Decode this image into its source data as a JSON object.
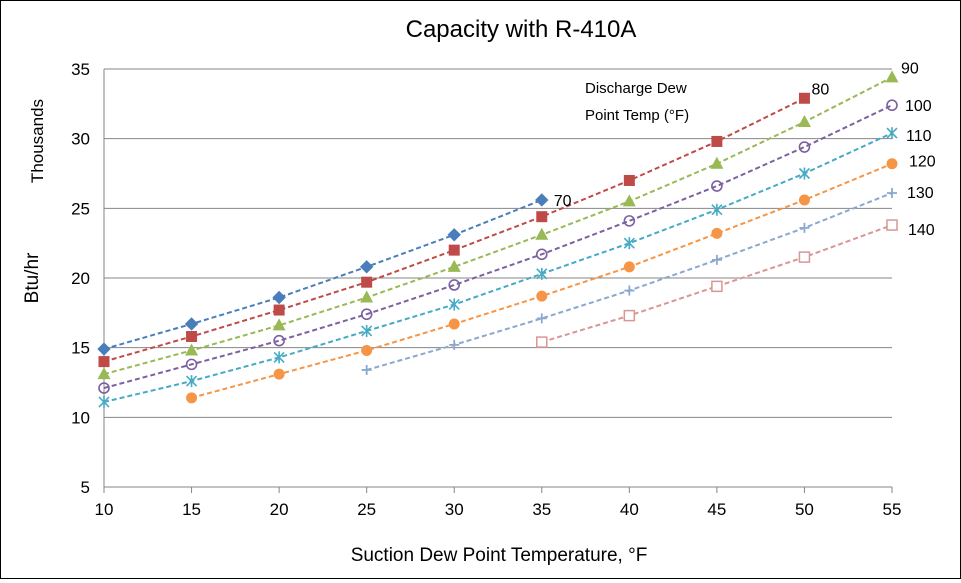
{
  "chart_data": {
    "type": "line",
    "title": "Capacity with R-410A",
    "xlabel": "Suction Dew Point Temperature, °F",
    "ylabel": "Btu/hr",
    "yunit_label": "Thousands",
    "legend_note": [
      "Discharge Dew",
      "Point Temp (°F)"
    ],
    "xlim": [
      10,
      55
    ],
    "ylim": [
      5,
      35
    ],
    "x_ticks": [
      10,
      15,
      20,
      25,
      30,
      35,
      40,
      45,
      50,
      55
    ],
    "y_ticks": [
      5,
      10,
      15,
      20,
      25,
      30,
      35
    ],
    "grid": "horizontal",
    "series": [
      {
        "name": "70",
        "color": "#4a7ebb",
        "marker": "diamond",
        "x": [
          10,
          15,
          20,
          25,
          30,
          35
        ],
        "values": [
          14.9,
          16.7,
          18.6,
          20.8,
          23.1,
          25.6
        ]
      },
      {
        "name": "80",
        "color": "#be4b48",
        "marker": "square",
        "x": [
          10,
          15,
          20,
          25,
          30,
          35,
          40,
          45,
          50
        ],
        "values": [
          14.0,
          15.8,
          17.7,
          19.7,
          22.0,
          24.4,
          27.0,
          29.8,
          32.9
        ]
      },
      {
        "name": "90",
        "color": "#98b954",
        "marker": "triangle",
        "x": [
          10,
          15,
          20,
          25,
          30,
          35,
          40,
          45,
          50,
          55
        ],
        "values": [
          13.1,
          14.8,
          16.6,
          18.6,
          20.8,
          23.1,
          25.5,
          28.2,
          31.2,
          34.4
        ]
      },
      {
        "name": "100",
        "color": "#7d60a0",
        "marker": "circle-open",
        "x": [
          10,
          15,
          20,
          25,
          30,
          35,
          40,
          45,
          50,
          55
        ],
        "values": [
          12.1,
          13.8,
          15.5,
          17.4,
          19.5,
          21.7,
          24.1,
          26.6,
          29.4,
          32.4
        ]
      },
      {
        "name": "110",
        "color": "#46aac5",
        "marker": "asterisk",
        "x": [
          10,
          15,
          20,
          25,
          30,
          35,
          40,
          45,
          50,
          55
        ],
        "values": [
          11.1,
          12.6,
          14.3,
          16.2,
          18.1,
          20.3,
          22.5,
          24.9,
          27.5,
          30.4
        ]
      },
      {
        "name": "120",
        "color": "#f69545",
        "marker": "circle",
        "x": [
          15,
          20,
          25,
          30,
          35,
          40,
          45,
          50,
          55
        ],
        "values": [
          11.4,
          13.1,
          14.8,
          16.7,
          18.7,
          20.8,
          23.2,
          25.6,
          28.2
        ]
      },
      {
        "name": "130",
        "color": "#8ca7d0",
        "marker": "plus",
        "x": [
          25,
          30,
          35,
          40,
          45,
          50,
          55
        ],
        "values": [
          13.4,
          15.2,
          17.1,
          19.1,
          21.3,
          23.6,
          26.1
        ]
      },
      {
        "name": "140",
        "color": "#d99694",
        "marker": "square-open",
        "x": [
          35,
          40,
          45,
          50,
          55
        ],
        "values": [
          15.4,
          17.3,
          19.4,
          21.5,
          23.8
        ]
      }
    ]
  }
}
